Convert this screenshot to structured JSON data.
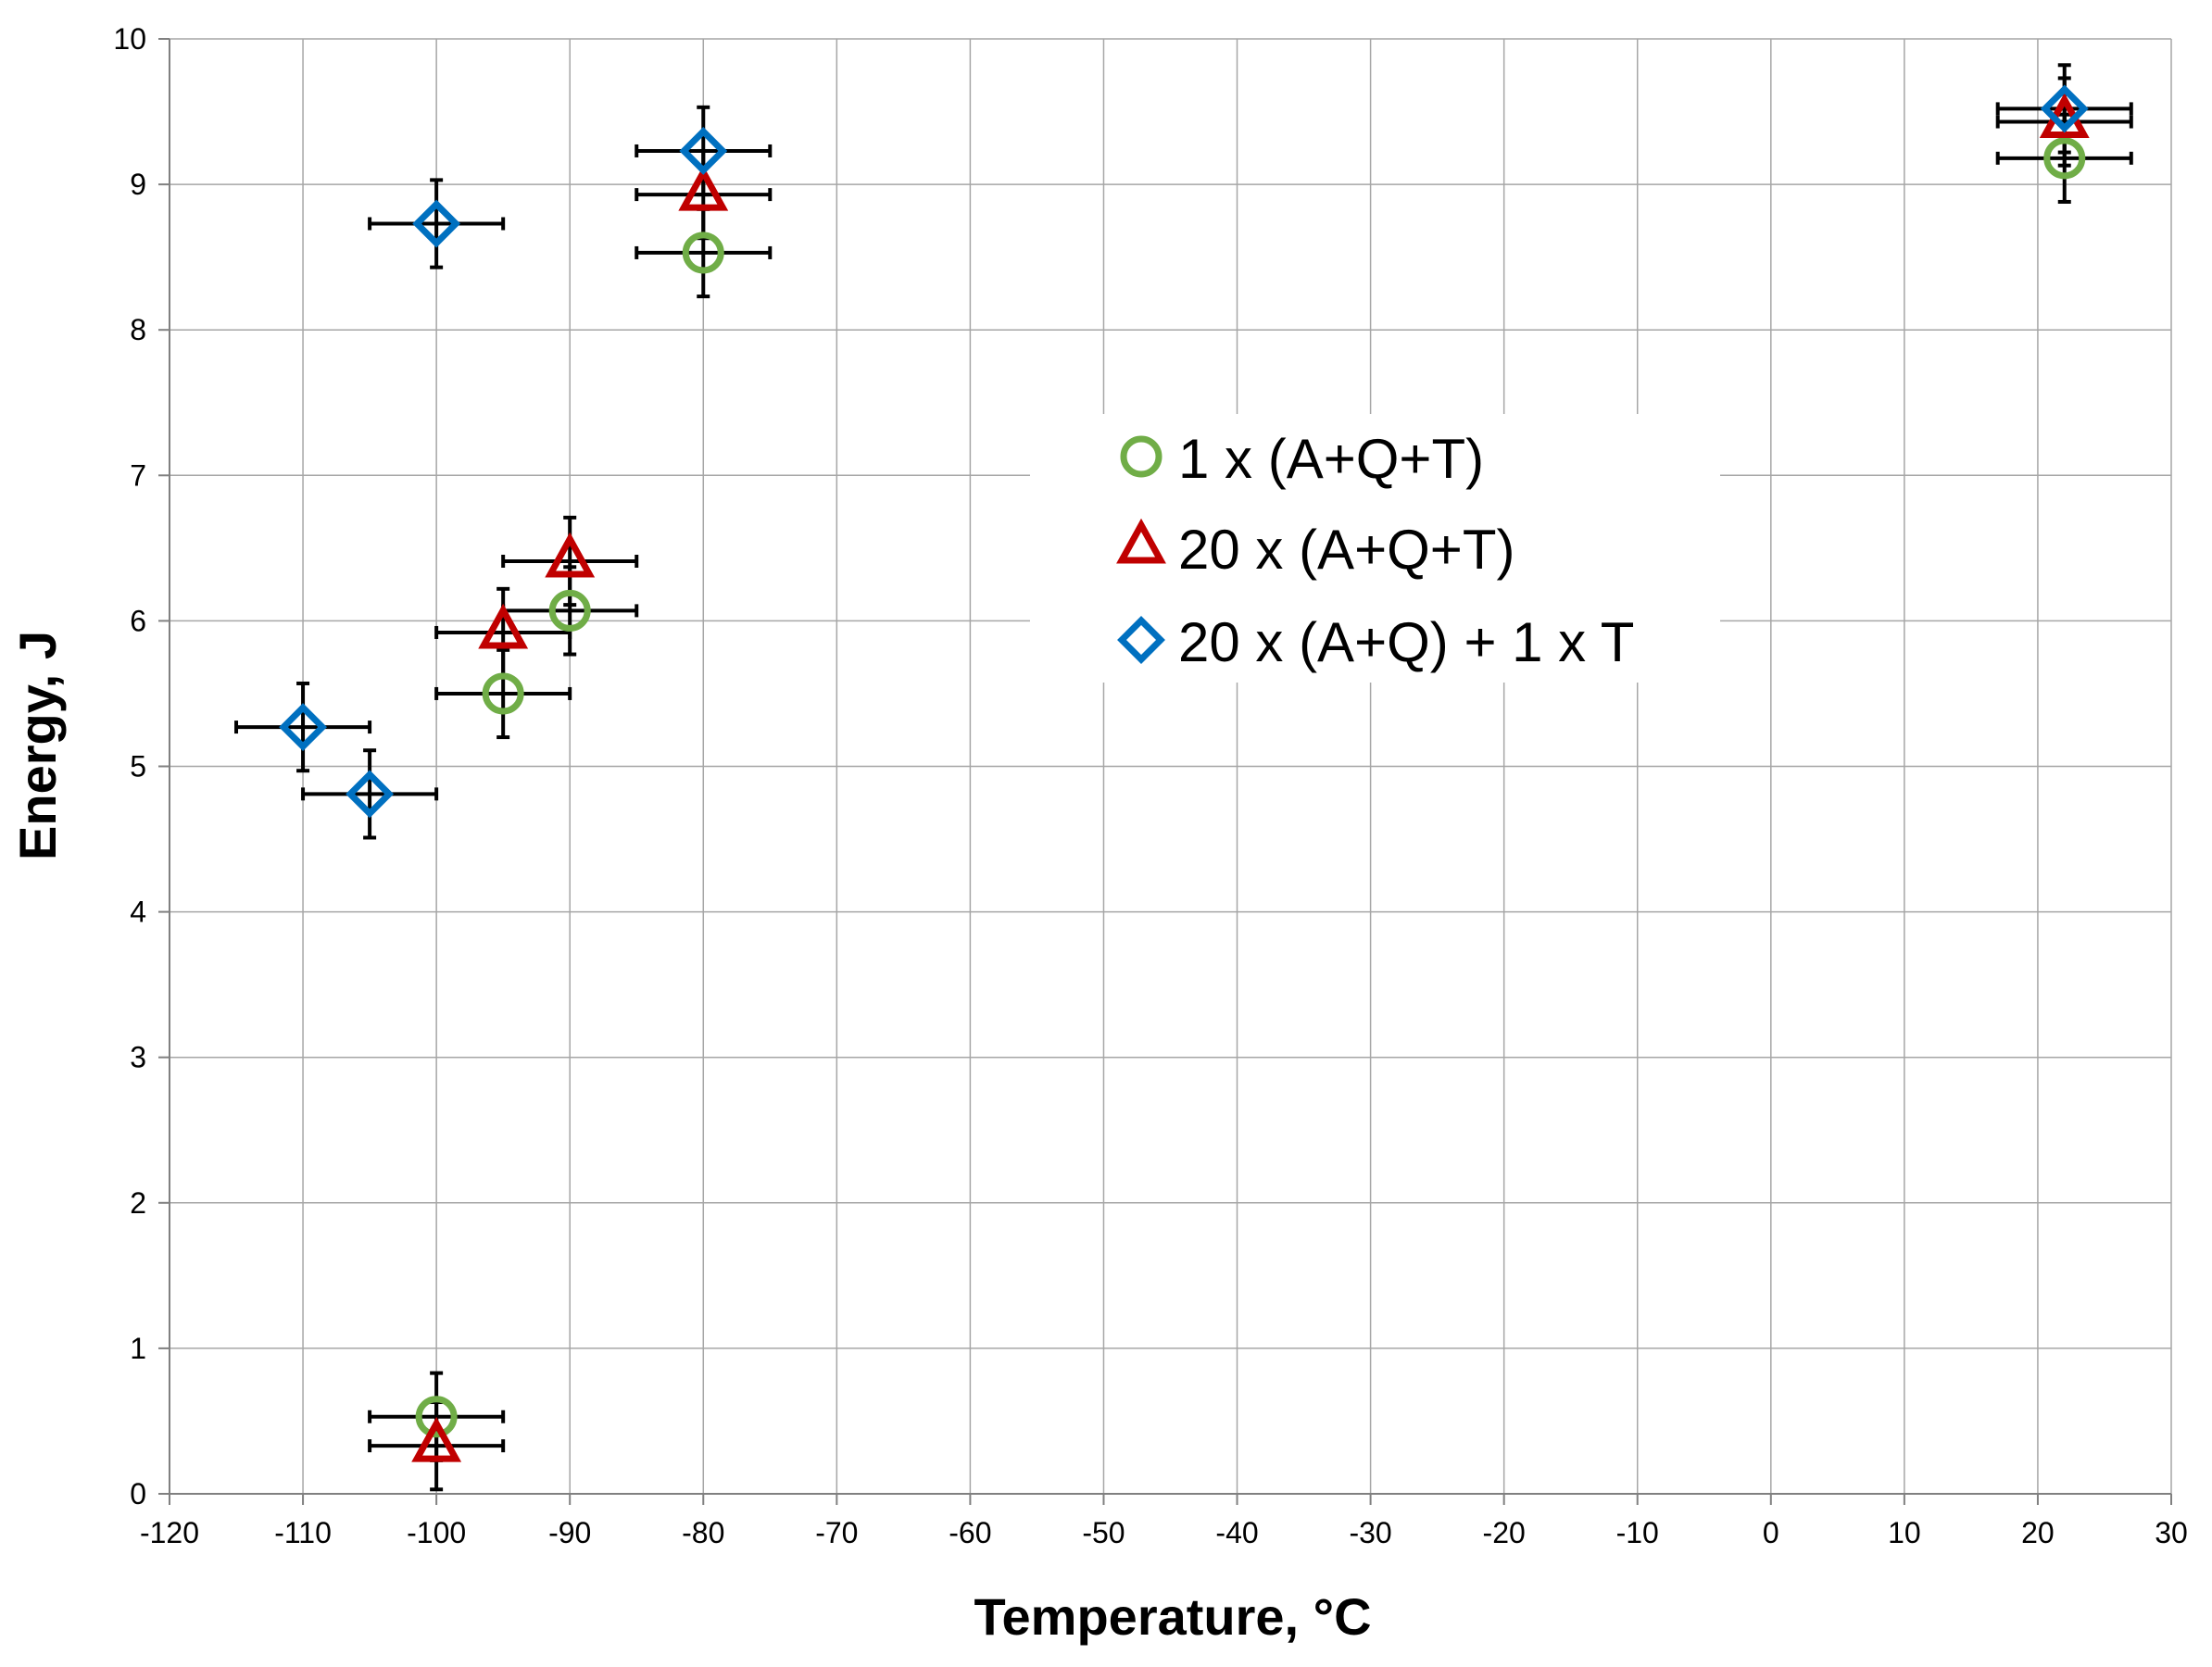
{
  "chart_data": {
    "type": "scatter",
    "xlabel": "Temperature, °C",
    "ylabel": "Energy, J",
    "xlim": [
      -120,
      30
    ],
    "ylim": [
      0,
      10
    ],
    "x_ticks": [
      "-120",
      "-110",
      "-100",
      "-90",
      "-80",
      "-70",
      "-60",
      "-50",
      "-40",
      "-30",
      "-20",
      "-10",
      "0",
      "10",
      "20",
      "30"
    ],
    "y_ticks": [
      "0",
      "1",
      "2",
      "3",
      "4",
      "5",
      "6",
      "7",
      "8",
      "9",
      "10"
    ],
    "grid": true,
    "legend_position": "center",
    "x_error": 5,
    "y_error": 0.3,
    "series": [
      {
        "name": "1 x (A+Q+T)",
        "marker": "circle",
        "color": "#70ad47",
        "points": [
          {
            "x": -100,
            "y": 0.53
          },
          {
            "x": -95,
            "y": 5.5
          },
          {
            "x": -90,
            "y": 6.07
          },
          {
            "x": -80,
            "y": 8.53
          },
          {
            "x": 22,
            "y": 9.18
          }
        ]
      },
      {
        "name": "20 x (A+Q+T)",
        "marker": "triangle",
        "color": "#c00000",
        "points": [
          {
            "x": -100,
            "y": 0.33
          },
          {
            "x": -95,
            "y": 5.92
          },
          {
            "x": -90,
            "y": 6.41
          },
          {
            "x": -80,
            "y": 8.93
          },
          {
            "x": 22,
            "y": 9.43
          }
        ]
      },
      {
        "name": "20 x (A+Q) + 1 x T",
        "marker": "diamond",
        "color": "#0070c0",
        "points": [
          {
            "x": -110,
            "y": 5.27
          },
          {
            "x": -105,
            "y": 4.81
          },
          {
            "x": -100,
            "y": 8.73
          },
          {
            "x": -80,
            "y": 9.23
          },
          {
            "x": 22,
            "y": 9.52
          }
        ]
      }
    ]
  }
}
